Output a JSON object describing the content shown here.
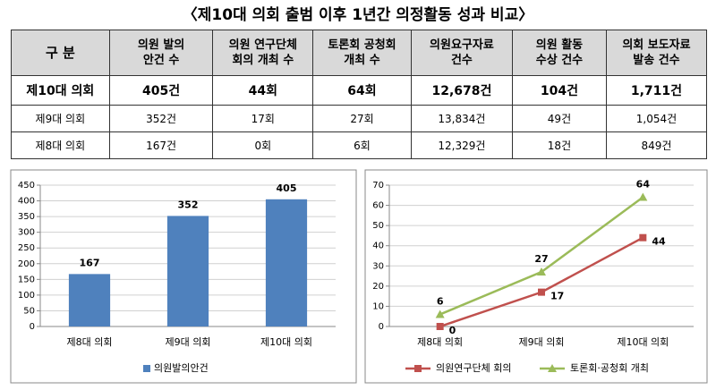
{
  "title": "〈제10대 의회 출범 이후 1년간 의정활동 성과 비교〉",
  "table": {
    "header": [
      "구  분",
      "의원 발의\n안건 수",
      "의원 연구단체\n회의 개최 수",
      "토론회 공청회\n개최 수",
      "의원요구자료\n건수",
      "의원 활동\n수상 건수",
      "의회 보도자료\n발송 건수"
    ],
    "rows": [
      [
        "제10대 의회",
        "405건",
        "44회",
        "64회",
        "12,678건",
        "104건",
        "1,711건"
      ],
      [
        "제9대 의회",
        "352건",
        "17회",
        "27회",
        "13,834건",
        "49건",
        "1,054건"
      ],
      [
        "제8대 의회",
        "167건",
        "0회",
        "6회",
        "12,329건",
        "18건",
        "849건"
      ]
    ]
  },
  "chart_data": [
    {
      "type": "bar",
      "categories": [
        "제8대 의회",
        "제9대 의회",
        "제10대 의회"
      ],
      "series": [
        {
          "name": "의원발의안건",
          "color": "#4f81bd",
          "values": [
            167,
            352,
            405
          ]
        }
      ],
      "ylim": [
        0,
        450
      ],
      "yticks": [
        0,
        50,
        100,
        150,
        200,
        250,
        300,
        350,
        400,
        450
      ],
      "grid": true,
      "legend": "bottom"
    },
    {
      "type": "line",
      "categories": [
        "제8대 의회",
        "제9대 의회",
        "제10대 의회"
      ],
      "series": [
        {
          "name": "의원연구단체 회의",
          "color": "#c0504d",
          "values": [
            0,
            17,
            44
          ]
        },
        {
          "name": "토론회·공청회 개최",
          "color": "#9bbb59",
          "values": [
            6,
            27,
            64
          ]
        }
      ],
      "ylim": [
        0,
        70
      ],
      "yticks": [
        0,
        10,
        20,
        30,
        40,
        50,
        60,
        70
      ],
      "grid": true,
      "legend": "bottom"
    }
  ]
}
